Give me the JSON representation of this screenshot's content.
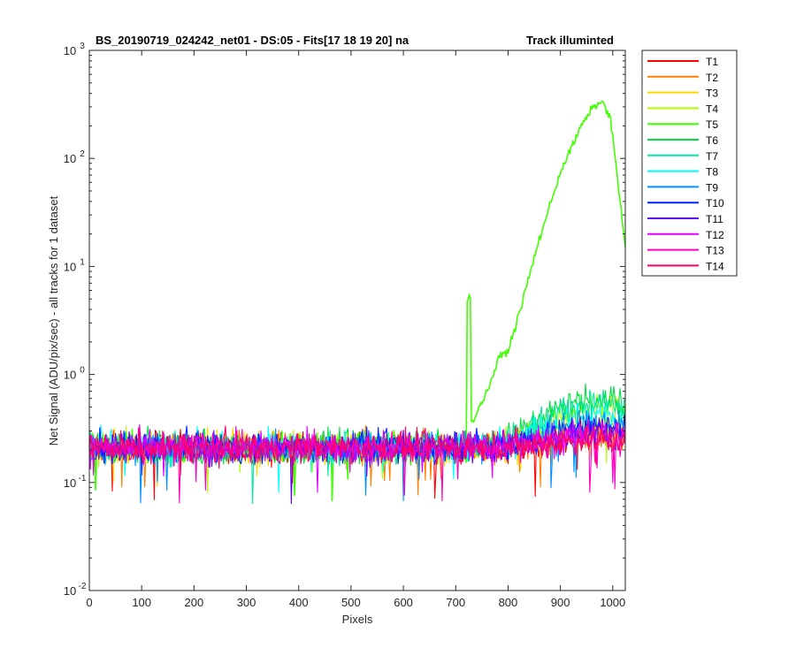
{
  "chart_data": {
    "type": "line",
    "title": "BS_20190719_024242_net01 - DS:05 - Fits[17  18  19  20]   na",
    "title_right": "Track illuminted",
    "xlabel": "Pixels",
    "ylabel": "Net Signal (ADU/pix/sec) - all tracks for 1 dataset",
    "xlim": [
      0,
      1024
    ],
    "ylim": [
      0.01,
      1000
    ],
    "yscale": "log",
    "grid": false,
    "legend_position": "outside-right",
    "x_ticks": [
      "0",
      "100",
      "200",
      "300",
      "400",
      "500",
      "600",
      "700",
      "800",
      "900",
      "1000"
    ],
    "y_ticks": [
      {
        "base": "10",
        "exp": "-2"
      },
      {
        "base": "10",
        "exp": "-1"
      },
      {
        "base": "10",
        "exp": "0"
      },
      {
        "base": "10",
        "exp": "1"
      },
      {
        "base": "10",
        "exp": "2"
      },
      {
        "base": "10",
        "exp": "3"
      }
    ],
    "baseline_level": 0.21,
    "series": [
      {
        "name": "T1",
        "color": "#ff0000",
        "peak": 0.26
      },
      {
        "name": "T2",
        "color": "#ff8000",
        "peak": 0.28
      },
      {
        "name": "T3",
        "color": "#ffd700",
        "peak": 0.32
      },
      {
        "name": "T4",
        "color": "#b0ff00",
        "peak": 0.5
      },
      {
        "name": "T5",
        "color": "#40ff00",
        "peak": 330
      },
      {
        "name": "T6",
        "color": "#00e040",
        "peak": 0.6
      },
      {
        "name": "T7",
        "color": "#00e8a0",
        "peak": 0.55
      },
      {
        "name": "T8",
        "color": "#00ffff",
        "peak": 0.42
      },
      {
        "name": "T9",
        "color": "#0090ff",
        "peak": 0.34
      },
      {
        "name": "T10",
        "color": "#0020ff",
        "peak": 0.32
      },
      {
        "name": "T11",
        "color": "#6000ff",
        "peak": 0.3
      },
      {
        "name": "T12",
        "color": "#e000ff",
        "peak": 0.27
      },
      {
        "name": "T13",
        "color": "#ff00c0",
        "peak": 0.26
      },
      {
        "name": "T14",
        "color": "#ff0060",
        "peak": 0.25
      }
    ],
    "peak_series": {
      "name": "T5",
      "points": [
        [
          730,
          0.35
        ],
        [
          760,
          0.7
        ],
        [
          785,
          1.5
        ],
        [
          800,
          1.65
        ],
        [
          820,
          3.5
        ],
        [
          860,
          18
        ],
        [
          900,
          75
        ],
        [
          940,
          200
        ],
        [
          965,
          310
        ],
        [
          980,
          330
        ],
        [
          995,
          250
        ],
        [
          1010,
          60
        ],
        [
          1024,
          15
        ]
      ]
    }
  }
}
